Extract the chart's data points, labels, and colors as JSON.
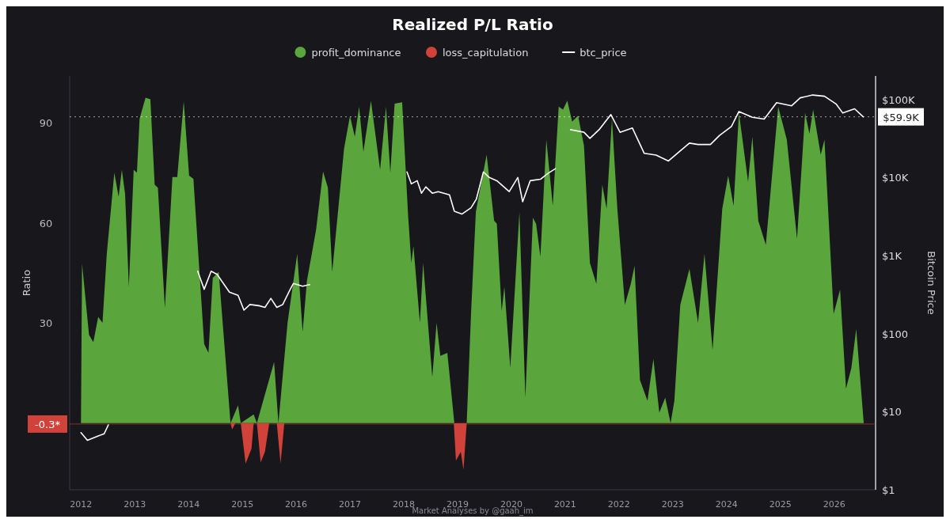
{
  "chart_data": {
    "type": "area",
    "title": "Realized P/L Ratio",
    "ylabel": "Ratio",
    "y2label": "Bitcoin Price",
    "legend": "top",
    "grid": false,
    "xlim": [
      2011.79,
      2026.77
    ],
    "xticks": [
      2012,
      2013,
      2014,
      2015,
      2016,
      2017,
      2018,
      2019,
      2020,
      2021,
      2022,
      2023,
      2024,
      2025,
      2026
    ],
    "ylim": [
      -20,
      104
    ],
    "yticks": [
      30,
      60,
      90
    ],
    "y2lim": [
      1,
      200000
    ],
    "y2ticks": [
      {
        "value": 1,
        "label": "$1"
      },
      {
        "value": 10,
        "label": "$10"
      },
      {
        "value": 100,
        "label": "$100"
      },
      {
        "value": 1000,
        "label": "$1K"
      },
      {
        "value": 10000,
        "label": "$10K"
      },
      {
        "value": 100000,
        "label": "$100K"
      }
    ],
    "log": "y2",
    "ref_lines": [
      {
        "axis": "y",
        "value": -0.3,
        "label": "-0.3*",
        "color": "#d0423a"
      },
      {
        "axis": "y2",
        "value": 59900,
        "label": "$59.9K",
        "color": "#ffffff",
        "line_style": "dotted"
      }
    ],
    "annotations": [
      "Market Analyses by @gaah_im"
    ],
    "series": [
      {
        "name": "profit_dominance",
        "color": "#5aa63c",
        "x": [
          2012.0,
          2012.02,
          2012.15,
          2012.23,
          2012.32,
          2012.4,
          2012.48,
          2012.62,
          2012.7,
          2012.76,
          2012.82,
          2012.89,
          2012.98,
          2013.04,
          2013.09,
          2013.2,
          2013.29,
          2013.37,
          2013.43,
          2013.56,
          2013.7,
          2013.79,
          2013.91,
          2014.01,
          2014.09,
          2014.29,
          2014.37,
          2014.45,
          2014.56,
          2014.73,
          2014.78,
          2014.92,
          2014.97,
          2015.21,
          2015.27,
          2015.59,
          2015.67,
          2015.84,
          2016.02,
          2016.12,
          2016.2,
          2016.31,
          2016.37,
          2016.5,
          2016.59,
          2016.67,
          2016.89,
          2017.0,
          2017.09,
          2017.17,
          2017.25,
          2017.39,
          2017.56,
          2017.67,
          2017.75,
          2017.83,
          2017.97,
          2018.08,
          2018.14,
          2018.18,
          2018.3,
          2018.36,
          2018.53,
          2018.61,
          2018.68,
          2018.81,
          2018.94,
          2019.17,
          2019.25,
          2019.34,
          2019.54,
          2019.68,
          2019.73,
          2019.82,
          2019.87,
          2019.98,
          2020.15,
          2020.26,
          2020.4,
          2020.46,
          2020.54,
          2020.65,
          2020.77,
          2020.88,
          2020.96,
          2021.04,
          2021.13,
          2021.24,
          2021.35,
          2021.46,
          2021.58,
          2021.69,
          2021.77,
          2021.87,
          2021.97,
          2022.11,
          2022.22,
          2022.29,
          2022.39,
          2022.53,
          2022.64,
          2022.75,
          2022.86,
          2022.96,
          2023.03,
          2023.14,
          2023.31,
          2023.47,
          2023.59,
          2023.74,
          2023.92,
          2024.03,
          2024.13,
          2024.23,
          2024.4,
          2024.48,
          2024.59,
          2024.73,
          2024.96,
          2025.12,
          2025.31,
          2025.46,
          2025.54,
          2025.61,
          2025.75,
          2025.82,
          2025.99,
          2026.11,
          2026.22,
          2026.32,
          2026.41,
          2026.55
        ],
        "values": [
          0,
          47.8,
          26.4,
          24.2,
          31.8,
          30,
          50.7,
          75,
          67.8,
          75.9,
          68.7,
          40.8,
          75.9,
          75,
          91.2,
          97.5,
          97,
          71.4,
          70.5,
          34.5,
          73.7,
          73.7,
          96.4,
          74.1,
          73.2,
          23.7,
          21,
          43.5,
          45.3,
          10.3,
          0,
          5.3,
          0,
          2.6,
          0,
          18.3,
          0,
          30,
          50.7,
          27.3,
          42.6,
          52.5,
          57.9,
          75.4,
          70.5,
          45.3,
          82.2,
          92,
          85.8,
          94.8,
          81.3,
          96.6,
          75.9,
          94.8,
          75,
          95.7,
          96.1,
          62.4,
          48,
          53,
          30,
          48,
          13.8,
          30,
          20.1,
          21,
          0,
          0,
          32.7,
          63.3,
          80.4,
          60.6,
          59.7,
          33.6,
          40.8,
          16.5,
          63.3,
          7.6,
          61.5,
          59.7,
          49.8,
          84.9,
          65.1,
          94.8,
          93.9,
          96.6,
          90.3,
          92.1,
          83.1,
          48,
          41.7,
          71.4,
          64.2,
          91.2,
          64.2,
          35.4,
          41.7,
          47.1,
          12.9,
          6.7,
          19.2,
          3.1,
          7.6,
          0,
          6.7,
          35.4,
          46.2,
          30,
          50.7,
          21.9,
          64.2,
          74.1,
          65.1,
          93,
          72.3,
          85.8,
          60.6,
          53.4,
          94.8,
          84.9,
          55.2,
          93,
          86.7,
          93.9,
          80.4,
          84.9,
          32.7,
          40,
          10.3,
          16.5,
          28.2,
          0
        ]
      },
      {
        "name": "loss_capitulation",
        "color": "#d0423a",
        "x": [
          2014.78,
          2014.81,
          2014.87,
          2014.97,
          2015.06,
          2015.17,
          2015.21,
          2015.27,
          2015.34,
          2015.42,
          2015.5,
          2015.64,
          2015.71,
          2015.78,
          2018.93,
          2018.97,
          2019.06,
          2019.11,
          2019.17
        ],
        "values": [
          0,
          -1.9,
          0,
          0,
          -12.2,
          -7.7,
          0,
          0,
          -11.8,
          -8.6,
          0,
          0,
          -12.2,
          0,
          0,
          -11.3,
          -8.6,
          -14,
          0
        ]
      },
      {
        "name": "btc_price",
        "type": "line",
        "axis": "y2",
        "color": "#ffffff",
        "x": [
          2012.0,
          2012.12,
          2012.32,
          2012.43,
          2012.51,
          2013.3,
          2014.17,
          2014.29,
          2014.42,
          2014.53,
          2014.76,
          2014.92,
          2015.03,
          2015.14,
          2015.31,
          2015.42,
          2015.53,
          2015.64,
          2015.75,
          2015.89,
          2015.95,
          2016.12,
          2016.25,
          2017.1,
          2018.06,
          2018.14,
          2018.25,
          2018.33,
          2018.41,
          2018.53,
          2018.64,
          2018.85,
          2018.94,
          2019.08,
          2019.25,
          2019.35,
          2019.48,
          2019.59,
          2019.73,
          2019.96,
          2020.12,
          2020.21,
          2020.35,
          2020.54,
          2020.68,
          2020.82,
          2020.96,
          2021.1,
          2021.35,
          2021.46,
          2021.63,
          2021.85,
          2022.02,
          2022.25,
          2022.47,
          2022.69,
          2022.92,
          2023.14,
          2023.31,
          2023.47,
          2023.7,
          2023.87,
          2024.09,
          2024.23,
          2024.48,
          2024.7,
          2024.93,
          2025.21,
          2025.37,
          2025.6,
          2025.82,
          2026.04,
          2026.16,
          2026.38,
          2026.54
        ],
        "values": [
          5.4,
          4.3,
          4.9,
          5.2,
          6.8,
          null,
          630,
          370,
          630,
          575,
          340,
          310,
          200,
          236,
          228,
          217,
          283,
          217,
          236,
          370,
          440,
          405,
          425,
          null,
          11800,
          8300,
          9100,
          6300,
          7600,
          6300,
          6600,
          6000,
          3700,
          3400,
          4100,
          5300,
          11800,
          10000,
          9100,
          6600,
          10000,
          4900,
          9100,
          9500,
          11300,
          13000,
          null,
          41000,
          38000,
          31700,
          41000,
          64000,
          38000,
          43000,
          20400,
          19400,
          16300,
          22000,
          27600,
          26500,
          26500,
          34600,
          45000,
          70000,
          59000,
          56000,
          91000,
          83000,
          105000,
          114000,
          110000,
          87000,
          67000,
          76000,
          59900
        ]
      }
    ]
  }
}
